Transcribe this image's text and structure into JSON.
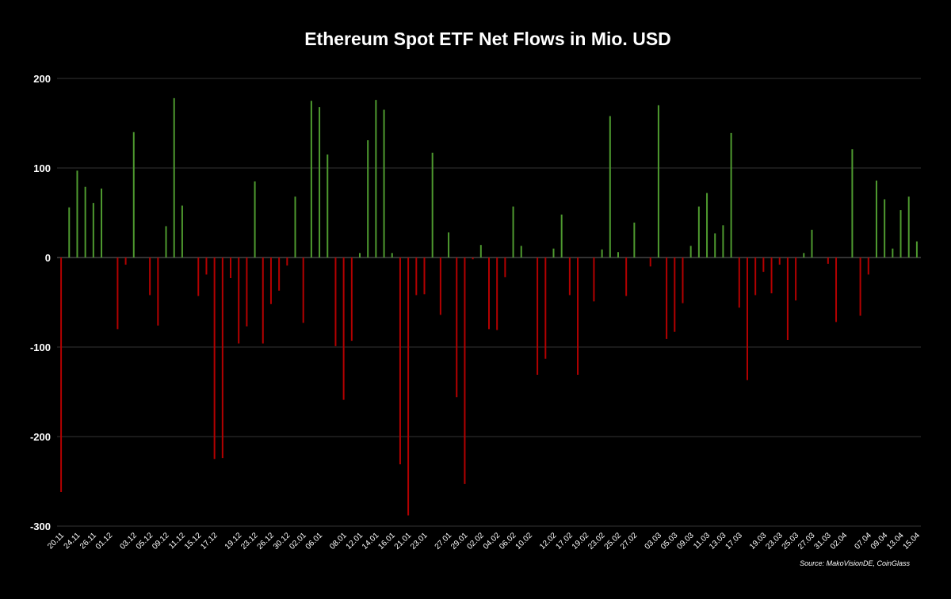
{
  "chart_data": {
    "type": "bar",
    "title": "Ethereum Spot ETF Net Flows in Mio. USD",
    "xlabel": "",
    "ylabel": "",
    "ylim": [
      -300,
      200
    ],
    "yticks": [
      200,
      100,
      0,
      -100,
      -200,
      -300
    ],
    "grid": true,
    "colors": {
      "positive": "#4e9a2f",
      "negative": "#b30000",
      "background": "#000000",
      "grid": "#333333"
    },
    "x_tick_labels": [
      "20.11",
      "24.11",
      "26.11",
      "01.12",
      "03.12",
      "05.12",
      "09.12",
      "11.12",
      "15.12",
      "17.12",
      "19.12",
      "23.12",
      "26.12",
      "30.12",
      "02.01",
      "06.01",
      "08.01",
      "12.01",
      "14.01",
      "16.01",
      "21.01",
      "23.01",
      "27.01",
      "29.01",
      "02.02",
      "04.02",
      "06.02",
      "10.02",
      "12.02",
      "17.02",
      "19.02",
      "23.02",
      "25.02",
      "27.02",
      "03.03",
      "05.03",
      "09.03",
      "11.03",
      "13.03",
      "17.03",
      "19.03",
      "23.03",
      "25.03",
      "27.03",
      "31.03",
      "02.04",
      "07.04",
      "09.04",
      "13.04",
      "15.04"
    ],
    "values": [
      -262,
      56,
      97,
      79,
      61,
      77,
      0,
      -80,
      -8,
      140,
      0,
      -42,
      -76,
      35,
      178,
      58,
      0,
      -43,
      -19,
      -225,
      -224,
      -23,
      -96,
      -77,
      85,
      -96,
      -52,
      -37,
      -9,
      68,
      -73,
      175,
      168,
      115,
      -99,
      -159,
      -93,
      5,
      131,
      176,
      165,
      5,
      -231,
      -288,
      -42,
      -41,
      117,
      -64,
      28,
      -156,
      -253,
      -2,
      14,
      -80,
      -81,
      -22,
      57,
      13,
      0,
      -131,
      -113,
      10,
      48,
      -42,
      -131,
      0,
      -49,
      9,
      158,
      6,
      -43,
      39,
      0,
      -10,
      170,
      -91,
      -83,
      -51,
      13,
      57,
      72,
      27,
      36,
      139,
      -56,
      -137,
      -42,
      -16,
      -40,
      -8,
      -92,
      -48,
      5,
      31,
      0,
      -7,
      -72,
      0,
      121,
      -65,
      -19,
      86,
      65,
      10,
      53,
      68,
      18
    ]
  },
  "source": "Source: MakoVisionDE, CoinGlass"
}
